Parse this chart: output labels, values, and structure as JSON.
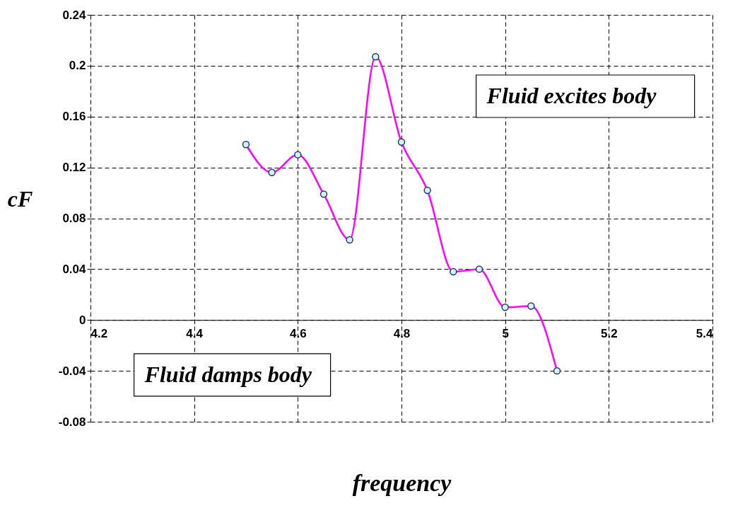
{
  "chart_data": {
    "type": "line",
    "xlabel": "frequency",
    "ylabel": "cF",
    "x": [
      4.5,
      4.55,
      4.6,
      4.65,
      4.7,
      4.75,
      4.8,
      4.85,
      4.9,
      4.95,
      5.0,
      5.05,
      5.1
    ],
    "series": [
      {
        "color": "#ff00ff",
        "values": [
          0.138,
          0.116,
          0.13,
          0.099,
          0.063,
          0.207,
          0.14,
          0.102,
          0.038,
          0.04,
          0.01,
          0.011,
          -0.04
        ]
      }
    ],
    "xlim": [
      4.2,
      5.4
    ],
    "xticks": [
      4.2,
      4.4,
      4.6,
      4.8,
      5,
      5.2,
      5.4
    ],
    "ylim": [
      -0.08,
      0.24
    ],
    "yticks": [
      -0.08,
      -0.04,
      0,
      0.04,
      0.08,
      0.12,
      0.16,
      0.2,
      0.24
    ],
    "grid": true,
    "marker": "circle",
    "line_style": "solid",
    "annotations": [
      "Fluid excites body",
      "Fluid damps body"
    ]
  }
}
